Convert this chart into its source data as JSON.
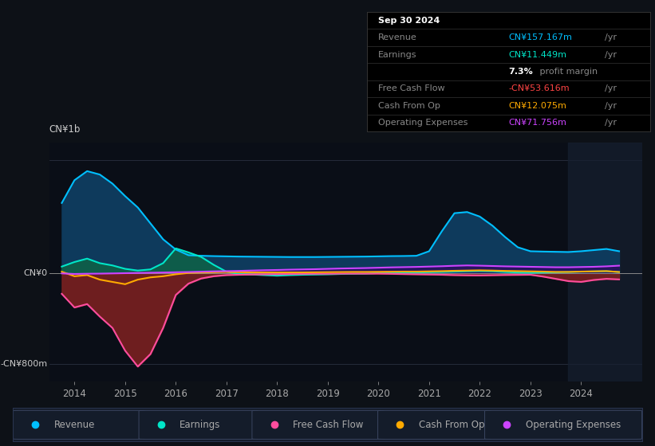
{
  "bg_color": "#0d1117",
  "plot_bg_color": "#0a0e17",
  "title_date": "Sep 30 2024",
  "ylabel": "CN¥1b",
  "y0_label": "CN¥0",
  "ymin_label": "-CN¥800m",
  "ylim": [
    -950,
    1150
  ],
  "xlim": [
    2013.5,
    2025.2
  ],
  "xticks": [
    2014,
    2015,
    2016,
    2017,
    2018,
    2019,
    2020,
    2021,
    2022,
    2023,
    2024
  ],
  "colors": {
    "revenue": "#00bfff",
    "earnings": "#00e5c8",
    "free_cash_flow": "#ff4d9e",
    "cash_from_op": "#ffaa00",
    "op_expenses": "#cc44ff",
    "revenue_fill": "#0e3a5c",
    "earnings_fill_pos": "#0e5c4a",
    "earnings_fill_neg": "#5c1a1a",
    "fcf_fill_neg": "#6e2020",
    "op_exp_fill": "#2a1060"
  },
  "legend": [
    {
      "label": "Revenue",
      "color": "#00bfff"
    },
    {
      "label": "Earnings",
      "color": "#00e5c8"
    },
    {
      "label": "Free Cash Flow",
      "color": "#ff4d9e"
    },
    {
      "label": "Cash From Op",
      "color": "#ffaa00"
    },
    {
      "label": "Operating Expenses",
      "color": "#cc44ff"
    }
  ],
  "years": [
    2013.75,
    2014.0,
    2014.25,
    2014.5,
    2014.75,
    2015.0,
    2015.25,
    2015.5,
    2015.75,
    2016.0,
    2016.25,
    2016.5,
    2016.75,
    2017.0,
    2017.25,
    2017.5,
    2017.75,
    2018.0,
    2018.25,
    2018.5,
    2018.75,
    2019.0,
    2019.25,
    2019.5,
    2019.75,
    2020.0,
    2020.25,
    2020.5,
    2020.75,
    2021.0,
    2021.25,
    2021.5,
    2021.75,
    2022.0,
    2022.25,
    2022.5,
    2022.75,
    2023.0,
    2023.25,
    2023.5,
    2023.75,
    2024.0,
    2024.25,
    2024.5,
    2024.75
  ],
  "revenue": [
    620,
    820,
    900,
    870,
    790,
    680,
    580,
    440,
    300,
    210,
    160,
    155,
    152,
    150,
    148,
    147,
    146,
    145,
    144,
    144,
    144,
    145,
    146,
    147,
    148,
    150,
    152,
    153,
    155,
    195,
    370,
    530,
    540,
    500,
    420,
    320,
    230,
    195,
    192,
    190,
    188,
    195,
    205,
    215,
    195
  ],
  "earnings": [
    60,
    100,
    130,
    90,
    70,
    40,
    25,
    35,
    90,
    220,
    185,
    145,
    75,
    15,
    -5,
    -10,
    -15,
    -20,
    -15,
    -12,
    -10,
    -8,
    -5,
    -3,
    -2,
    3,
    5,
    7,
    8,
    10,
    12,
    15,
    18,
    20,
    18,
    12,
    8,
    6,
    8,
    10,
    12,
    15,
    17,
    19,
    12
  ],
  "free_cash_flow": [
    -180,
    -300,
    -270,
    -380,
    -480,
    -680,
    -820,
    -710,
    -480,
    -190,
    -90,
    -45,
    -25,
    -15,
    -12,
    -10,
    -8,
    -7,
    -5,
    -4,
    -3,
    -3,
    -2,
    -2,
    -2,
    -2,
    -4,
    -6,
    -8,
    -10,
    -12,
    -15,
    -17,
    -18,
    -16,
    -14,
    -13,
    -12,
    -28,
    -48,
    -68,
    -75,
    -58,
    -48,
    -53
  ],
  "cash_from_op": [
    15,
    -25,
    -15,
    -55,
    -75,
    -95,
    -55,
    -35,
    -25,
    -8,
    4,
    8,
    10,
    12,
    10,
    9,
    9,
    9,
    9,
    9,
    10,
    11,
    12,
    13,
    13,
    14,
    15,
    16,
    16,
    18,
    20,
    23,
    25,
    27,
    25,
    22,
    20,
    18,
    16,
    13,
    13,
    16,
    18,
    20,
    12
  ],
  "op_expenses": [
    0,
    -5,
    -3,
    -2,
    0,
    2,
    4,
    6,
    8,
    10,
    12,
    15,
    18,
    20,
    22,
    25,
    28,
    30,
    33,
    35,
    37,
    40,
    43,
    45,
    47,
    50,
    53,
    55,
    57,
    60,
    63,
    67,
    70,
    68,
    65,
    62,
    60,
    58,
    56,
    54,
    54,
    56,
    58,
    62,
    68
  ]
}
